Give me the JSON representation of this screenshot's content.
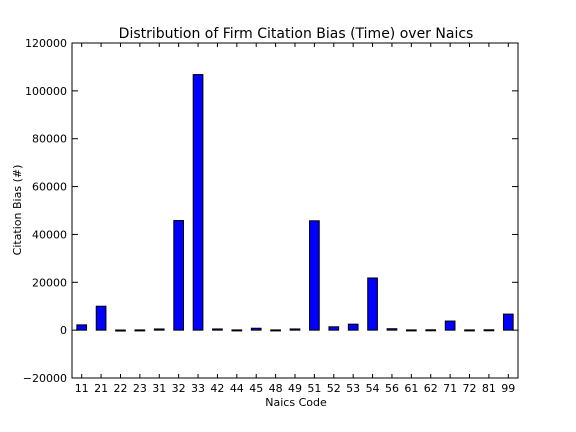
{
  "chart_data": {
    "type": "bar",
    "title": "Distribution of Firm Citation Bias (Time) over Naics",
    "xlabel": "Naics Code",
    "ylabel": "Citation Bias (#)",
    "ylim": [
      -20000,
      120000
    ],
    "yticks": [
      -20000,
      0,
      20000,
      40000,
      60000,
      80000,
      100000,
      120000
    ],
    "grid": false,
    "categories": [
      "11",
      "21",
      "22",
      "23",
      "31",
      "32",
      "33",
      "42",
      "44",
      "45",
      "48",
      "49",
      "51",
      "52",
      "53",
      "54",
      "56",
      "61",
      "62",
      "71",
      "72",
      "81",
      "99"
    ],
    "values": [
      2200,
      10000,
      50,
      100,
      500,
      45800,
      106800,
      500,
      100,
      800,
      100,
      500,
      45700,
      1400,
      2500,
      21800,
      600,
      100,
      150,
      3800,
      100,
      150,
      6700
    ],
    "bar_color": "#0000ff"
  }
}
